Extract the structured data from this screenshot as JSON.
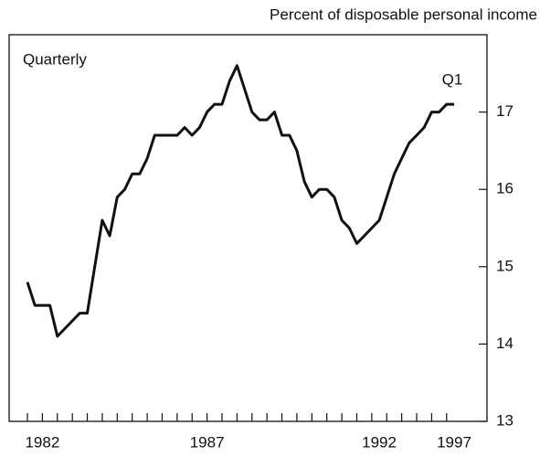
{
  "chart_data": {
    "type": "line",
    "subtitle": "Percent of disposable personal income",
    "annotations": [
      "Quarterly",
      "Q1"
    ],
    "categories": [
      null,
      null,
      "1982",
      null,
      null,
      null,
      null,
      null,
      null,
      null,
      null,
      null,
      null,
      null,
      null,
      null,
      null,
      null,
      null,
      null,
      null,
      null,
      null,
      null,
      "1987",
      null,
      null,
      null,
      null,
      null,
      null,
      null,
      null,
      null,
      null,
      null,
      null,
      null,
      null,
      null,
      null,
      null,
      null,
      null,
      null,
      null,
      null,
      "1992",
      null,
      null,
      null,
      null,
      null,
      null,
      null,
      null,
      null,
      "1997"
    ],
    "series": [
      {
        "name": "Quarterly",
        "color": "#111111",
        "values": [
          14.8,
          14.5,
          14.5,
          14.5,
          14.1,
          14.2,
          14.3,
          14.4,
          14.4,
          15.0,
          15.6,
          15.4,
          15.9,
          16.0,
          16.2,
          16.2,
          16.4,
          16.7,
          16.7,
          16.7,
          16.7,
          16.8,
          16.7,
          16.8,
          17.0,
          17.1,
          17.1,
          17.4,
          17.6,
          17.3,
          17.0,
          16.9,
          16.9,
          17.0,
          16.7,
          16.7,
          16.5,
          16.1,
          15.9,
          16.0,
          16.0,
          15.9,
          15.6,
          15.5,
          15.3,
          15.4,
          15.5,
          15.6,
          15.9,
          16.2,
          16.4,
          16.6,
          16.7,
          16.8,
          17.0,
          17.0,
          17.1,
          17.1
        ]
      }
    ],
    "ylim": [
      13,
      18
    ],
    "yticks": [
      13,
      14,
      15,
      16,
      17
    ],
    "yaxis_side": "right"
  }
}
